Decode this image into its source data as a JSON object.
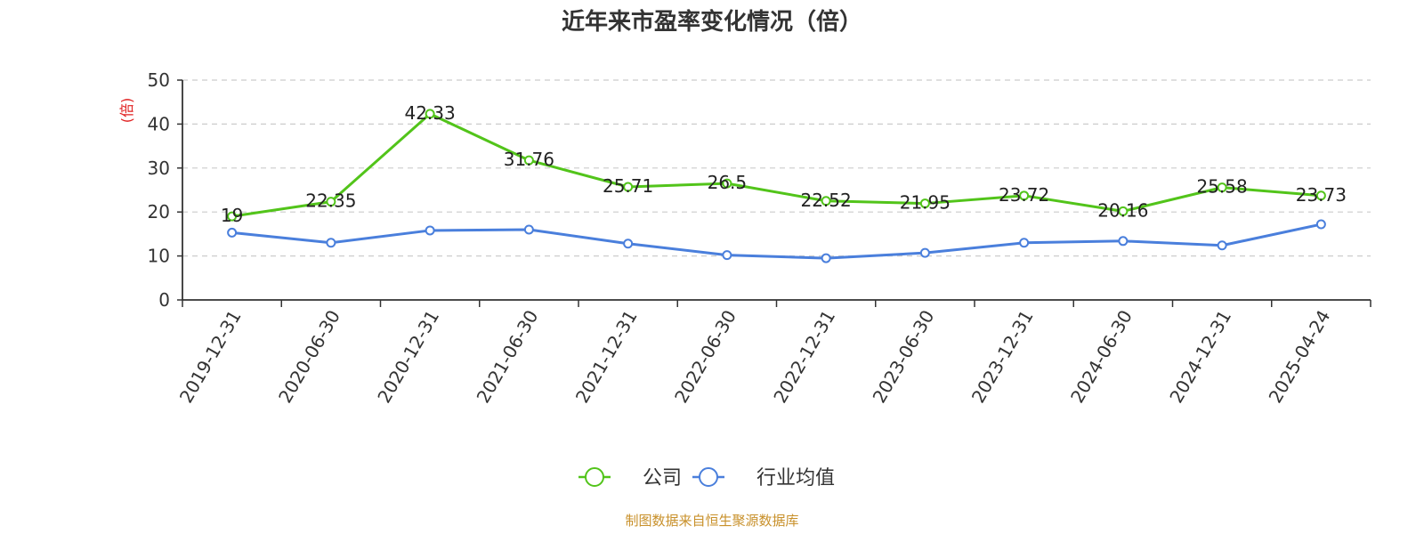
{
  "chart_data": {
    "type": "line",
    "title": "近年来市盈率变化情况（倍）",
    "ylabel": "(倍)",
    "xlabel": "",
    "categories": [
      "2019-12-31",
      "2020-06-30",
      "2020-12-31",
      "2021-06-30",
      "2021-12-31",
      "2022-06-30",
      "2022-12-31",
      "2023-06-30",
      "2023-12-31",
      "2024-06-30",
      "2024-12-31",
      "2025-04-24"
    ],
    "ylim": [
      0,
      50
    ],
    "yticks": [
      0,
      10,
      20,
      30,
      40,
      50
    ],
    "grid": true,
    "legend_position": "bottom",
    "series": [
      {
        "name": "公司",
        "color": "#52c41a",
        "show_labels": true,
        "values": [
          19,
          22.35,
          42.33,
          31.76,
          25.71,
          26.5,
          22.52,
          21.95,
          23.72,
          20.16,
          25.58,
          23.73
        ],
        "labels": [
          "19",
          "22.35",
          "42.33",
          "31.76",
          "25.71",
          "26.5",
          "22.52",
          "21.95",
          "23.72",
          "20.16",
          "25.58",
          "23.73"
        ]
      },
      {
        "name": "行业均值",
        "color": "#4a7fdc",
        "show_labels": false,
        "values": [
          15.3,
          13.0,
          15.8,
          16.0,
          12.8,
          10.2,
          9.5,
          10.7,
          13.0,
          13.4,
          12.4,
          17.2
        ]
      }
    ],
    "source": "制图数据来自恒生聚源数据库"
  }
}
